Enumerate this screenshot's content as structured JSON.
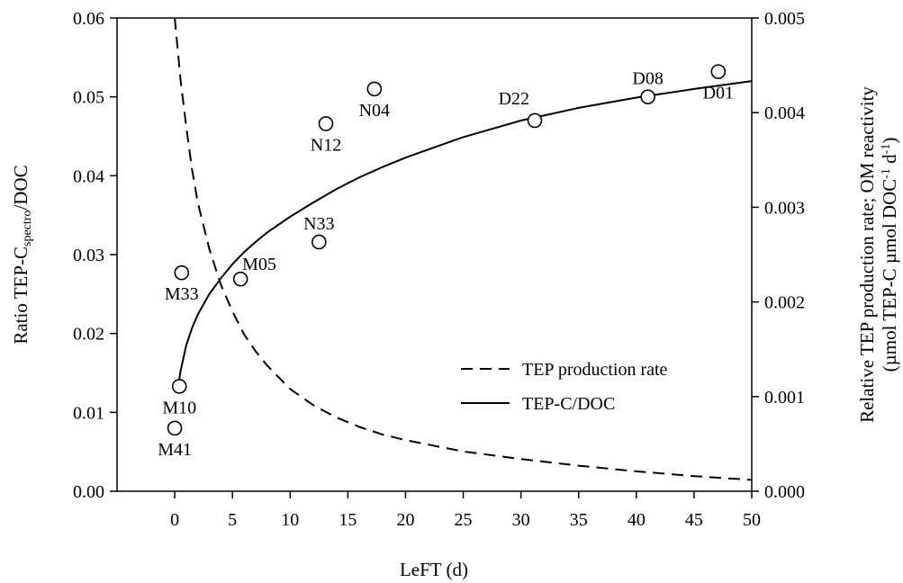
{
  "chart_data": {
    "type": "scatter",
    "xlabel": "LeFT (d)",
    "ylabel_left": {
      "prefix": "Ratio TEP-C",
      "subscript": "spectro",
      "suffix": "/DOC"
    },
    "ylabel_right": {
      "line1": "Relative TEP production rate; OM reactivity",
      "line2_parts": [
        {
          "text": "(µmol TEP-C µmol DOC",
          "sup": false
        },
        {
          "text": "-1",
          "sup": true
        },
        {
          "text": " d",
          "sup": false
        },
        {
          "text": "-1",
          "sup": true
        },
        {
          "text": ")",
          "sup": false
        }
      ]
    },
    "xlim": [
      -5,
      50
    ],
    "ylim_left": [
      0,
      0.06
    ],
    "ylim_right": [
      0,
      0.005
    ],
    "x_ticks": [
      0,
      5,
      10,
      15,
      20,
      25,
      30,
      35,
      40,
      45,
      50
    ],
    "x_tick_labels": [
      "0",
      "5",
      "10",
      "15",
      "20",
      "25",
      "30",
      "35",
      "40",
      "45",
      "50"
    ],
    "y_left_ticks": [
      0,
      0.01,
      0.02,
      0.03,
      0.04,
      0.05,
      0.06
    ],
    "y_left_tick_labels": [
      "0.00",
      "0.01",
      "0.02",
      "0.03",
      "0.04",
      "0.05",
      "0.06"
    ],
    "y_right_ticks": [
      0,
      0.001,
      0.002,
      0.003,
      0.004,
      0.005
    ],
    "y_right_tick_labels": [
      "0.000",
      "0.001",
      "0.002",
      "0.003",
      "0.004",
      "0.005"
    ],
    "points": [
      {
        "label": "M41",
        "x": 0.0,
        "y": 0.008,
        "label_pos": "below"
      },
      {
        "label": "M10",
        "x": 0.4,
        "y": 0.0133,
        "label_pos": "below"
      },
      {
        "label": "M33",
        "x": 0.6,
        "y": 0.0277,
        "label_pos": "below"
      },
      {
        "label": "M05",
        "x": 5.7,
        "y": 0.0269,
        "label_pos": "above-right"
      },
      {
        "label": "N33",
        "x": 12.5,
        "y": 0.0316,
        "label_pos": "above"
      },
      {
        "label": "N12",
        "x": 13.1,
        "y": 0.0466,
        "label_pos": "below"
      },
      {
        "label": "N04",
        "x": 17.3,
        "y": 0.051,
        "label_pos": "below"
      },
      {
        "label": "D22",
        "x": 31.2,
        "y": 0.047,
        "label_pos": "above-left"
      },
      {
        "label": "D08",
        "x": 41.0,
        "y": 0.05,
        "label_pos": "above"
      },
      {
        "label": "D01",
        "x": 47.1,
        "y": 0.0532,
        "label_pos": "below"
      }
    ],
    "series": [
      {
        "name": "TEP production rate",
        "style": "dashed",
        "axis": "right",
        "x": [
          0.0,
          0.5,
          1,
          1.5,
          2,
          3,
          4,
          5,
          6,
          7,
          8,
          10,
          12,
          14,
          16,
          18,
          20,
          25,
          30,
          35,
          40,
          45,
          50
        ],
        "values": [
          0.005,
          0.00435,
          0.00385,
          0.0034,
          0.00305,
          0.00256,
          0.00218,
          0.0019,
          0.00166,
          0.00148,
          0.00133,
          0.00108,
          0.00091,
          0.00078,
          0.00068,
          0.0006,
          0.00054,
          0.00042,
          0.00034,
          0.00027,
          0.00021,
          0.00016,
          0.00012
        ]
      },
      {
        "name": "TEP-C/DOC",
        "style": "solid",
        "axis": "left",
        "x": [
          0.3,
          0.5,
          1,
          1.5,
          2,
          3,
          4,
          5,
          6,
          7,
          8,
          10,
          12,
          14,
          16,
          18,
          20,
          25,
          30,
          35,
          40,
          45,
          50
        ],
        "values": [
          0.0133,
          0.0152,
          0.0185,
          0.0207,
          0.0224,
          0.025,
          0.027,
          0.0288,
          0.0303,
          0.0316,
          0.0328,
          0.0348,
          0.0366,
          0.0383,
          0.0398,
          0.0411,
          0.0423,
          0.0449,
          0.047,
          0.0486,
          0.0499,
          0.051,
          0.052
        ]
      }
    ],
    "legend": {
      "position": "lower-right"
    }
  }
}
